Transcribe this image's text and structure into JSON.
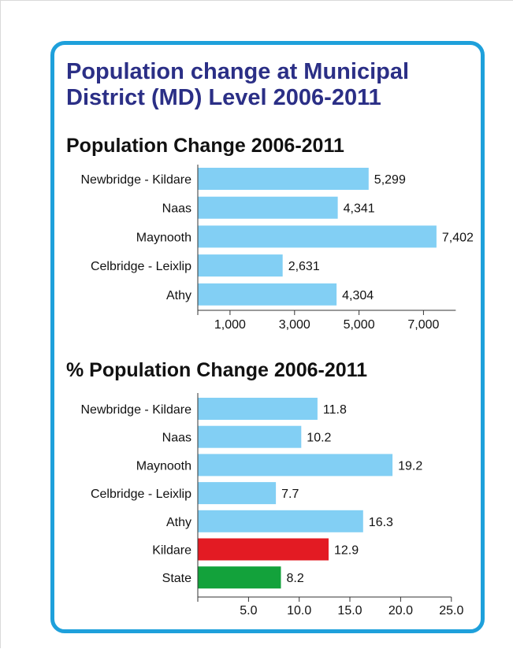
{
  "header": {
    "title_line1": "Population change at Municipal",
    "title_line2": "District (MD) Level 2006-2011"
  },
  "colors": {
    "frame": "#1ea0db",
    "title": "#2b2f86",
    "bar_md": "#82cff4",
    "bar_kildare": "#e31b23",
    "bar_state": "#13a23b"
  },
  "chart_data": [
    {
      "type": "bar",
      "orientation": "horizontal",
      "title": "Population Change 2006-2011",
      "categories": [
        "Newbridge - Kildare",
        "Naas",
        "Maynooth",
        "Celbridge - Leixlip",
        "Athy"
      ],
      "values": [
        5299,
        4341,
        7402,
        2631,
        4304
      ],
      "value_labels": [
        "5,299",
        "4,341",
        "7,402",
        "2,631",
        "4,304"
      ],
      "bar_colors": [
        "#82cff4",
        "#82cff4",
        "#82cff4",
        "#82cff4",
        "#82cff4"
      ],
      "xticks": [
        1000,
        3000,
        5000,
        7000
      ],
      "xtick_labels": [
        "1,000",
        "3,000",
        "5,000",
        "7,000"
      ],
      "xlim": [
        0,
        8000
      ],
      "grid": false
    },
    {
      "type": "bar",
      "orientation": "horizontal",
      "title": "% Population Change 2006-2011",
      "categories": [
        "Newbridge - Kildare",
        "Naas",
        "Maynooth",
        "Celbridge - Leixlip",
        "Athy",
        "Kildare",
        "State"
      ],
      "values": [
        11.8,
        10.2,
        19.2,
        7.7,
        16.3,
        12.9,
        8.2
      ],
      "value_labels": [
        "11.8",
        "10.2",
        "19.2",
        "7.7",
        "16.3",
        "12.9",
        "8.2"
      ],
      "bar_colors": [
        "#82cff4",
        "#82cff4",
        "#82cff4",
        "#82cff4",
        "#82cff4",
        "#e31b23",
        "#13a23b"
      ],
      "xticks": [
        5,
        10,
        15,
        20,
        25
      ],
      "xtick_labels": [
        "5.0",
        "10.0",
        "15.0",
        "20.0",
        "25.0"
      ],
      "xlim": [
        0,
        25
      ],
      "grid": false
    }
  ]
}
